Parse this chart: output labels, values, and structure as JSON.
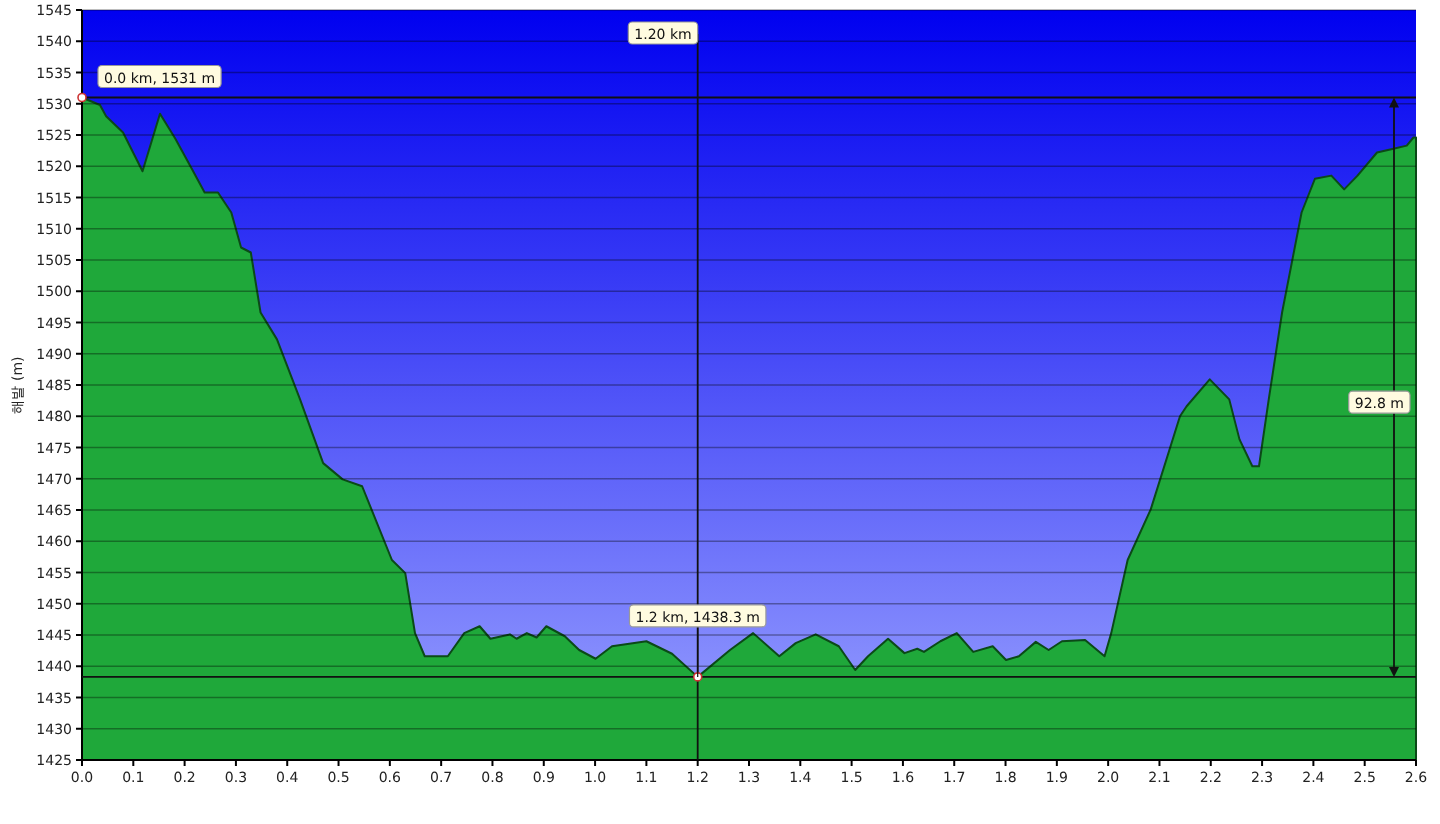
{
  "chart_data": {
    "type": "area",
    "ylabel": "해발 (m)",
    "xlim": [
      0,
      2.6
    ],
    "ylim": [
      1425,
      1545
    ],
    "xticks": [
      {
        "value": 0,
        "label": "0.0"
      },
      0.1,
      0.2,
      0.3,
      0.4,
      0.5,
      0.6,
      0.7,
      0.8,
      0.9,
      {
        "value": 1,
        "label": "1.0"
      },
      1.1,
      1.2,
      1.3,
      1.4,
      1.5,
      1.6,
      1.7,
      1.8,
      1.9,
      {
        "value": 2,
        "label": "2.0"
      },
      2.1,
      2.2,
      2.3,
      2.4,
      2.5,
      2.6
    ],
    "yticks": [
      1425,
      1430,
      1435,
      1440,
      1445,
      1450,
      1455,
      1460,
      1465,
      1470,
      1475,
      1480,
      1485,
      1490,
      1495,
      1500,
      1505,
      1510,
      1515,
      1520,
      1525,
      1530,
      1535,
      1540,
      1545
    ],
    "grid": "y",
    "series": [
      {
        "color": "#1fa83a",
        "x": [
          0,
          0.035,
          0.047,
          0.08,
          0.118,
          0.152,
          0.182,
          0.214,
          0.239,
          0.265,
          0.291,
          0.31,
          0.329,
          0.348,
          0.38,
          0.425,
          0.47,
          0.508,
          0.546,
          0.604,
          0.63,
          0.649,
          0.668,
          0.713,
          0.745,
          0.775,
          0.796,
          0.834,
          0.847,
          0.867,
          0.886,
          0.905,
          0.941,
          0.969,
          1.001,
          1.033,
          1.1,
          1.15,
          1.2,
          1.263,
          1.308,
          1.359,
          1.391,
          1.43,
          1.475,
          1.507,
          1.532,
          1.571,
          1.603,
          1.628,
          1.641,
          1.673,
          1.705,
          1.737,
          1.775,
          1.801,
          1.826,
          1.859,
          1.884,
          1.91,
          1.955,
          1.993,
          2.006,
          2.038,
          2.083,
          2.14,
          2.153,
          2.198,
          2.236,
          2.256,
          2.281,
          2.294,
          2.313,
          2.339,
          2.377,
          2.403,
          2.435,
          2.46,
          2.486,
          2.524,
          2.556,
          2.582,
          2.595,
          2.6
        ],
        "values": [
          1531,
          1529.8,
          1528,
          1525.4,
          1519.2,
          1528.4,
          1524.4,
          1519.6,
          1515.8,
          1515.8,
          1512.6,
          1507,
          1506.2,
          1496.6,
          1492.3,
          1482.7,
          1472.5,
          1469.9,
          1468.8,
          1457,
          1454.9,
          1445.3,
          1441.6,
          1441.6,
          1445.3,
          1446.4,
          1444.4,
          1445.1,
          1444.4,
          1445.3,
          1444.6,
          1446.4,
          1444.8,
          1442.6,
          1441.2,
          1443.2,
          1444,
          1442,
          1438.3,
          1442.6,
          1445.3,
          1441.6,
          1443.7,
          1445.1,
          1443.2,
          1439.4,
          1441.6,
          1444.4,
          1442.1,
          1442.8,
          1442.3,
          1444,
          1445.3,
          1442.3,
          1443.2,
          1441,
          1441.6,
          1443.9,
          1442.6,
          1444,
          1444.2,
          1441.6,
          1445.3,
          1457,
          1465.1,
          1480,
          1481.6,
          1485.9,
          1482.7,
          1476.3,
          1472,
          1472,
          1482.7,
          1496.6,
          1512.6,
          1518,
          1518.5,
          1516.3,
          1518.5,
          1522.2,
          1522.8,
          1523.3,
          1524.6,
          1524.6
        ]
      }
    ],
    "ref_lines": [
      {
        "axis": "y",
        "value": 1531
      },
      {
        "axis": "y",
        "value": 1438.3
      },
      {
        "axis": "x",
        "value": 1.2,
        "label": "1.20 km"
      }
    ],
    "annotations": [
      {
        "text": "0.0 km, 1531 m",
        "x": 0,
        "y": 1531
      },
      {
        "text": "1.2 km, 1438.3 m",
        "x": 1.2,
        "y": 1438.3
      },
      "92.8 m"
    ]
  }
}
